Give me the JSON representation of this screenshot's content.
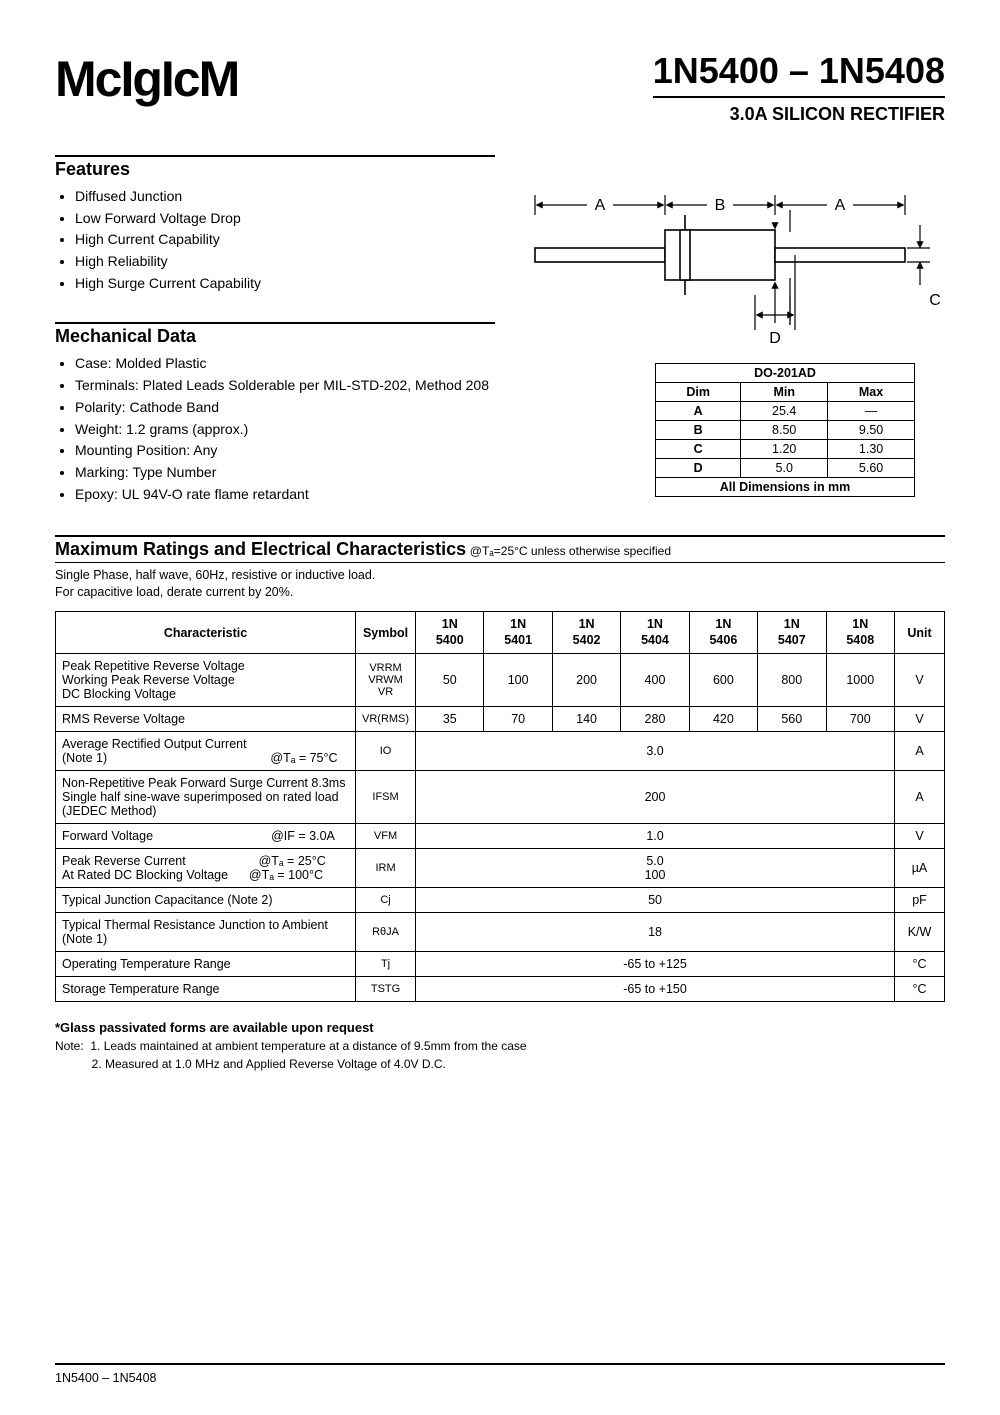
{
  "logo": "McIgIcM",
  "title": "1N5400 – 1N5408",
  "subtitle": "3.0A SILICON RECTIFIER",
  "features": {
    "heading": "Features",
    "items": [
      "Diffused Junction",
      "Low Forward Voltage Drop",
      "High Current Capability",
      "High Reliability",
      "High Surge Current Capability"
    ]
  },
  "mechanical": {
    "heading": "Mechanical Data",
    "items": [
      "Case: Molded Plastic",
      "Terminals: Plated Leads Solderable per MIL-STD-202, Method 208",
      "Polarity: Cathode Band",
      "Weight: 1.2 grams (approx.)",
      "Mounting Position: Any",
      "Marking: Type Number",
      "Epoxy: UL 94V-O rate flame retardant"
    ]
  },
  "package_diagram": {
    "labels": {
      "A": "A",
      "B": "B",
      "C": "C",
      "D": "D"
    }
  },
  "dim_table": {
    "caption": "DO-201AD",
    "header": [
      "Dim",
      "Min",
      "Max"
    ],
    "rows": [
      [
        "A",
        "25.4",
        "—"
      ],
      [
        "B",
        "8.50",
        "9.50"
      ],
      [
        "C",
        "1.20",
        "1.30"
      ],
      [
        "D",
        "5.0",
        "5.60"
      ]
    ],
    "footer": "All Dimensions in mm"
  },
  "ratings": {
    "heading": "Maximum Ratings and Electrical Characteristics",
    "condition": "@Tₐ=25°C unless otherwise specified",
    "preamble1": "Single Phase, half wave, 60Hz, resistive or inductive load.",
    "preamble2": "For capacitive load, derate current by 20%.",
    "columns": [
      "Characteristic",
      "Symbol",
      "1N 5400",
      "1N 5401",
      "1N 5402",
      "1N 5404",
      "1N 5406",
      "1N 5407",
      "1N 5408",
      "Unit"
    ],
    "rows": [
      {
        "char": "Peak Repetitive Reverse Voltage\nWorking Peak Reverse Voltage\nDC Blocking Voltage",
        "symbol": "VRRM\nVRWM\nVR",
        "vals": [
          "50",
          "100",
          "200",
          "400",
          "600",
          "800",
          "1000"
        ],
        "unit": "V"
      },
      {
        "char": "RMS Reverse Voltage",
        "symbol": "VR(RMS)",
        "vals": [
          "35",
          "70",
          "140",
          "280",
          "420",
          "560",
          "700"
        ],
        "unit": "V"
      },
      {
        "char": "Average Rectified Output Current\n(Note 1)                                               @Tₐ = 75°C",
        "symbol": "IO",
        "span": "3.0",
        "unit": "A"
      },
      {
        "char": "Non-Repetitive Peak Forward Surge Current 8.3ms Single half sine-wave superimposed on rated load (JEDEC Method)",
        "symbol": "IFSM",
        "span": "200",
        "unit": "A"
      },
      {
        "char": "Forward Voltage                                  @IF = 3.0A",
        "symbol": "VFM",
        "span": "1.0",
        "unit": "V"
      },
      {
        "char": "Peak Reverse Current                     @Tₐ = 25°C\nAt Rated DC Blocking Voltage      @Tₐ = 100°C",
        "symbol": "IRM",
        "span": "5.0\n100",
        "unit": "µA"
      },
      {
        "char": "Typical Junction Capacitance (Note 2)",
        "symbol": "Cj",
        "span": "50",
        "unit": "pF"
      },
      {
        "char": "Typical Thermal Resistance Junction to Ambient (Note 1)",
        "symbol": "RθJA",
        "span": "18",
        "unit": "K/W"
      },
      {
        "char": "Operating Temperature Range",
        "symbol": "Tj",
        "span": "-65 to +125",
        "unit": "°C"
      },
      {
        "char": "Storage Temperature Range",
        "symbol": "TSTG",
        "span": "-65 to +150",
        "unit": "°C"
      }
    ]
  },
  "glass_note": "*Glass passivated forms are available upon request",
  "footnotes": {
    "n1": "Note:  1. Leads maintained at ambient temperature at a distance of 9.5mm from the case",
    "n2": "           2. Measured at 1.0 MHz and Applied Reverse Voltage of 4.0V D.C."
  },
  "footer": "1N5400 – 1N5408"
}
